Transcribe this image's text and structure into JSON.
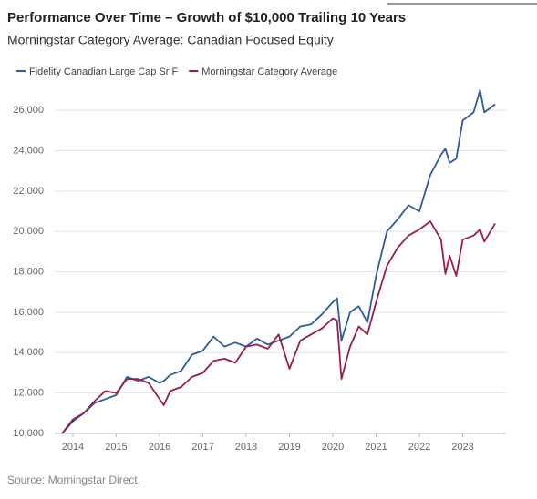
{
  "chart_data": {
    "type": "line",
    "title": "Performance Over Time – Growth of $10,000 Trailing 10 Years",
    "subtitle": "Morningstar Category Average: Canadian Focused Equity",
    "source": "Source: Morningstar Direct.",
    "x": [
      2013.75,
      2014.0,
      2014.25,
      2014.5,
      2014.75,
      2015.0,
      2015.25,
      2015.5,
      2015.75,
      2016.0,
      2016.1,
      2016.25,
      2016.5,
      2016.75,
      2017.0,
      2017.25,
      2017.5,
      2017.75,
      2018.0,
      2018.25,
      2018.5,
      2018.75,
      2019.0,
      2019.25,
      2019.5,
      2019.75,
      2020.0,
      2020.1,
      2020.2,
      2020.4,
      2020.6,
      2020.8,
      2021.0,
      2021.25,
      2021.5,
      2021.75,
      2022.0,
      2022.25,
      2022.5,
      2022.6,
      2022.7,
      2022.85,
      2023.0,
      2023.25,
      2023.4,
      2023.5,
      2023.75
    ],
    "series": [
      {
        "name": "Fidelity Canadian Large Cap Sr F",
        "color": "#2e5b9e",
        "values": [
          10000,
          10600,
          11000,
          11500,
          11700,
          11900,
          12800,
          12600,
          12800,
          12500,
          12600,
          12900,
          13100,
          13900,
          14100,
          14800,
          14300,
          14500,
          14300,
          14700,
          14400,
          14600,
          14800,
          15300,
          15400,
          15900,
          16500,
          16700,
          14600,
          16000,
          16300,
          15500,
          17800,
          20000,
          20600,
          21300,
          21000,
          22800,
          23800,
          24100,
          23400,
          23600,
          25500,
          25900,
          27000,
          25900,
          26300
        ]
      },
      {
        "name": "Morningstar Category Average",
        "color": "#9b1c4b",
        "values": [
          10000,
          10700,
          11000,
          11600,
          12100,
          12000,
          12700,
          12700,
          12500,
          11700,
          11400,
          12100,
          12300,
          12800,
          13000,
          13600,
          13700,
          13500,
          14300,
          14400,
          14200,
          14900,
          13200,
          14600,
          14900,
          15200,
          15700,
          15600,
          12700,
          14300,
          15300,
          14900,
          16500,
          18300,
          19200,
          19800,
          20100,
          20500,
          19600,
          17900,
          18800,
          17800,
          19600,
          19800,
          20100,
          19500,
          20400
        ]
      }
    ],
    "xlim": [
      2013.58,
      2024.0
    ],
    "xticks": [
      2014,
      2015,
      2016,
      2017,
      2018,
      2019,
      2020,
      2021,
      2022,
      2023
    ],
    "ylim": [
      10000,
      27000
    ],
    "yticks": [
      {
        "value": 10000,
        "label": "10,000"
      },
      {
        "value": 12000,
        "label": "12,000"
      },
      {
        "value": 14000,
        "label": "14,000"
      },
      {
        "value": 16000,
        "label": "16,000"
      },
      {
        "value": 18000,
        "label": "18,000"
      },
      {
        "value": 20000,
        "label": "20,000"
      },
      {
        "value": 22000,
        "label": "22,000"
      },
      {
        "value": 24000,
        "label": "24,000"
      },
      {
        "value": 26000,
        "label": "26,000"
      }
    ],
    "grid": true
  }
}
